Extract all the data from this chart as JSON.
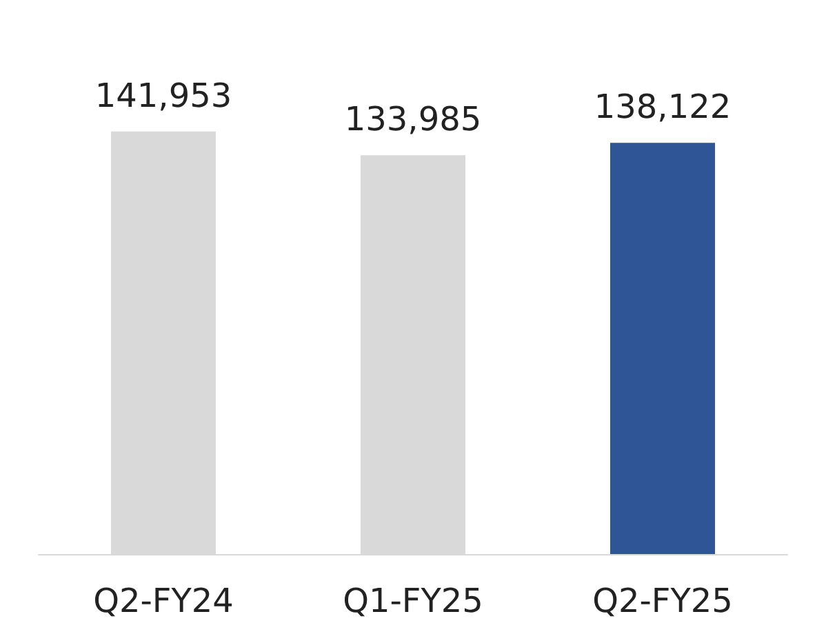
{
  "chart_data": {
    "type": "bar",
    "categories": [
      "Q2-FY24",
      "Q1-FY25",
      "Q2-FY25"
    ],
    "values": [
      141953,
      133985,
      138122
    ],
    "colors": [
      "#d9d9d9",
      "#d9d9d9",
      "#2f5597"
    ],
    "value_labels": [
      "141,953",
      "133,985",
      "138,122"
    ]
  }
}
